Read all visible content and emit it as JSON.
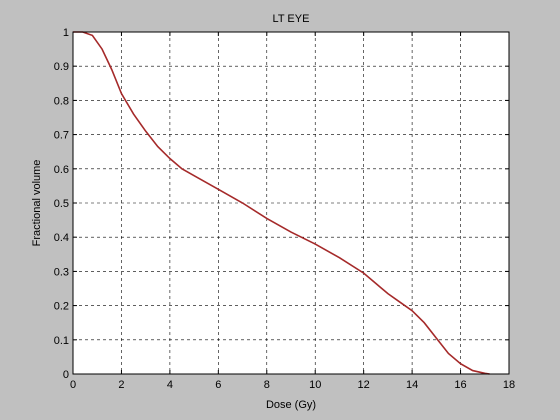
{
  "window": {
    "background_color": "#c0c0c0"
  },
  "chart_data": {
    "type": "line",
    "title": "LT EYE",
    "xlabel": "Dose (Gy)",
    "ylabel": "Fractional volume",
    "xlim": [
      0,
      18
    ],
    "ylim": [
      0,
      1
    ],
    "x_ticks": [
      0,
      2,
      4,
      6,
      8,
      10,
      12,
      14,
      16,
      18
    ],
    "y_ticks": [
      0,
      0.1,
      0.2,
      0.3,
      0.4,
      0.5,
      0.6,
      0.7,
      0.8,
      0.9,
      1
    ],
    "x_tick_labels": [
      "0",
      "2",
      "4",
      "6",
      "8",
      "10",
      "12",
      "14",
      "16",
      "18"
    ],
    "y_tick_labels": [
      "0",
      "0.1",
      "0.2",
      "0.3",
      "0.4",
      "0.5",
      "0.6",
      "0.7",
      "0.8",
      "0.9",
      "1"
    ],
    "grid": true,
    "grid_style": "dashed",
    "legend": "none",
    "line_color": "#a52a2a",
    "plot_background": "#ffffff",
    "series": [
      {
        "x": [
          0,
          0.4,
          0.8,
          1.2,
          1.6,
          2.0,
          2.5,
          3.0,
          3.5,
          4.0,
          4.5,
          5.0,
          6.0,
          7.0,
          8.0,
          9.0,
          10.0,
          11.0,
          12.0,
          12.5,
          13.0,
          13.5,
          14.0,
          14.5,
          15.0,
          15.5,
          16.0,
          16.5,
          17.0,
          17.2
        ],
        "y": [
          1.0,
          1.0,
          0.99,
          0.95,
          0.89,
          0.82,
          0.76,
          0.71,
          0.665,
          0.63,
          0.6,
          0.58,
          0.54,
          0.5,
          0.455,
          0.415,
          0.38,
          0.34,
          0.295,
          0.265,
          0.235,
          0.21,
          0.185,
          0.15,
          0.105,
          0.06,
          0.03,
          0.01,
          0.002,
          0.0
        ]
      }
    ]
  }
}
